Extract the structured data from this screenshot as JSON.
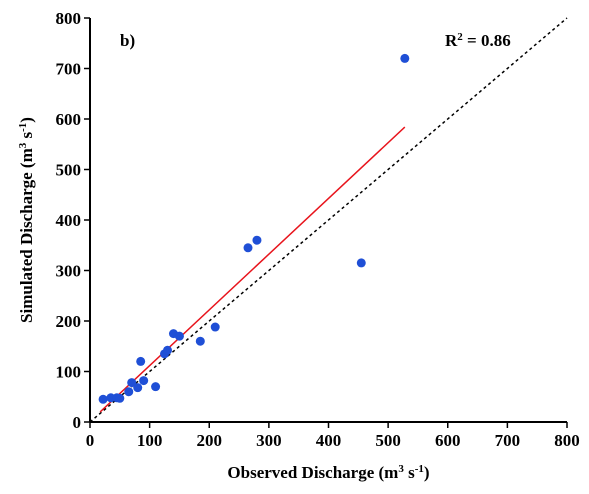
{
  "chart_data": {
    "type": "scatter",
    "panel_label": "b)",
    "annotation": [
      "R",
      "2",
      " = 0.86"
    ],
    "x_label": [
      "Observed Discharge (m",
      "3",
      " s",
      "-1",
      ")"
    ],
    "y_label": [
      "Simulated Discharge (m",
      "3",
      " s",
      "-1",
      ")"
    ],
    "series": [
      {
        "color": "#1f4fd6",
        "x": [
          22,
          35,
          45,
          50,
          65,
          70,
          80,
          85,
          90,
          110,
          125,
          130,
          140,
          150,
          185,
          210,
          265,
          280,
          455,
          528
        ],
        "values": [
          45,
          48,
          48,
          47,
          60,
          78,
          68,
          120,
          82,
          70,
          135,
          142,
          175,
          170,
          160,
          188,
          345,
          360,
          315,
          720
        ]
      }
    ],
    "fit_line": {
      "color": "#e8141c",
      "x": [
        17,
        528
      ],
      "y": [
        20,
        584
      ]
    },
    "reference_line": {
      "color": "#000000",
      "x": [
        0,
        800
      ],
      "y": [
        0,
        800
      ]
    },
    "xlim": [
      0,
      800
    ],
    "xticks": [
      0,
      100,
      200,
      300,
      400,
      500,
      600,
      700,
      800
    ],
    "ylim": [
      0,
      800
    ],
    "yticks": [
      0,
      100,
      200,
      300,
      400,
      500,
      600,
      700,
      800
    ]
  }
}
